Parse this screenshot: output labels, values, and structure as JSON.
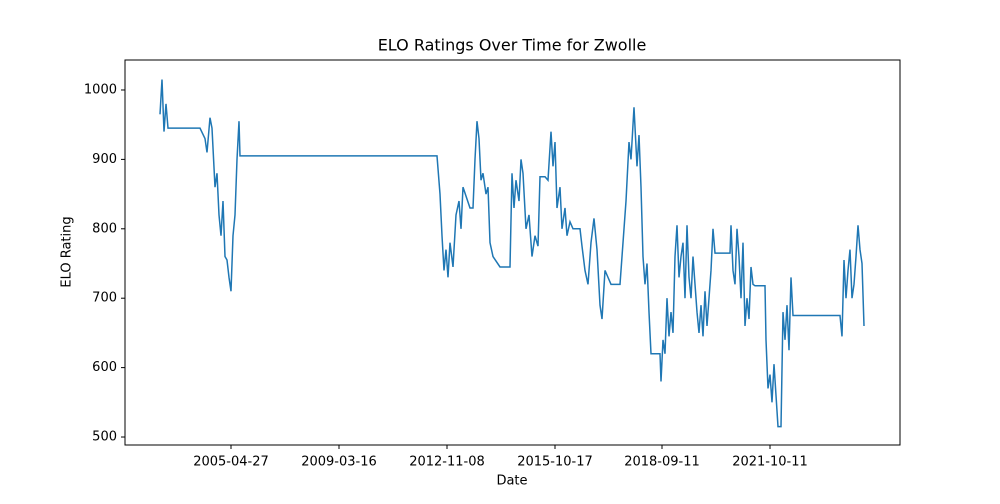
{
  "chart_data": {
    "type": "line",
    "title": "ELO Ratings Over Time for Zwolle",
    "x_label": "Date",
    "y_label": "ELO Rating",
    "color": "#1f77b4",
    "x": [
      0,
      2,
      4,
      6,
      8,
      40,
      45,
      47,
      50,
      52,
      55,
      57,
      59,
      61,
      63,
      65,
      67,
      69,
      71,
      73,
      75,
      77,
      79,
      80,
      277,
      280,
      282,
      284,
      286,
      288,
      290,
      293,
      296,
      299,
      301,
      303,
      310,
      313,
      315,
      317,
      319,
      321,
      323,
      326,
      328,
      330,
      333,
      340,
      350,
      352,
      354,
      356,
      359,
      361,
      363,
      366,
      369,
      372,
      375,
      378,
      380,
      385,
      388,
      391,
      393,
      395,
      397,
      400,
      402,
      405,
      407,
      410,
      413,
      420,
      422,
      425,
      428,
      431,
      434,
      437,
      440,
      442,
      445,
      448,
      451,
      460,
      463,
      466,
      469,
      471,
      474,
      477,
      479,
      481,
      483,
      485,
      487,
      489,
      491,
      495,
      500,
      501,
      503,
      505,
      507,
      509,
      511,
      513,
      515,
      517,
      519,
      521,
      523,
      525,
      527,
      529,
      531,
      533,
      535,
      537,
      539,
      541,
      543,
      545,
      547,
      549,
      551,
      553,
      555,
      565,
      570,
      571,
      573,
      575,
      577,
      579,
      581,
      583,
      585,
      587,
      589,
      591,
      593,
      595,
      605,
      606,
      608,
      610,
      612,
      614,
      616,
      618,
      621,
      623,
      625,
      627,
      629,
      631,
      633,
      640,
      680,
      682,
      684,
      686,
      688,
      690,
      692,
      694,
      696,
      698,
      700,
      702,
      704
    ],
    "series": [
      {
        "name": "Zwolle",
        "values": [
          965,
          1015,
          940,
          980,
          945,
          945,
          930,
          910,
          960,
          945,
          860,
          880,
          820,
          790,
          840,
          760,
          755,
          730,
          710,
          790,
          820,
          900,
          955,
          905,
          905,
          850,
          790,
          740,
          770,
          730,
          780,
          745,
          820,
          840,
          800,
          860,
          830,
          830,
          900,
          955,
          930,
          870,
          880,
          850,
          860,
          780,
          760,
          745,
          745,
          880,
          830,
          870,
          840,
          900,
          880,
          800,
          820,
          760,
          790,
          775,
          875,
          875,
          870,
          940,
          890,
          925,
          830,
          860,
          800,
          830,
          790,
          810,
          800,
          800,
          775,
          740,
          720,
          780,
          815,
          770,
          690,
          670,
          740,
          730,
          720,
          720,
          780,
          840,
          925,
          900,
          975,
          890,
          935,
          860,
          760,
          720,
          750,
          680,
          620,
          620,
          620,
          580,
          640,
          620,
          700,
          645,
          680,
          650,
          760,
          805,
          730,
          760,
          780,
          700,
          805,
          730,
          700,
          760,
          720,
          680,
          650,
          690,
          645,
          710,
          660,
          700,
          740,
          800,
          765,
          765,
          765,
          805,
          740,
          720,
          800,
          760,
          700,
          780,
          660,
          700,
          670,
          745,
          720,
          718,
          718,
          640,
          570,
          590,
          550,
          605,
          560,
          515,
          515,
          680,
          640,
          690,
          625,
          730,
          675,
          675,
          675,
          645,
          755,
          700,
          740,
          770,
          700,
          720,
          760,
          805,
          770,
          750,
          660
        ]
      }
    ],
    "xlim": [
      -35,
      740
    ],
    "xticks": [
      {
        "value": 71,
        "label": "2005-04-27"
      },
      {
        "value": 179,
        "label": "2009-03-16"
      },
      {
        "value": 287,
        "label": "2012-11-08"
      },
      {
        "value": 395,
        "label": "2015-10-17"
      },
      {
        "value": 502,
        "label": "2018-09-11"
      },
      {
        "value": 610,
        "label": "2021-10-11"
      }
    ],
    "ylim": [
      488.5,
      1043.2
    ],
    "yticks": [
      500,
      600,
      700,
      800,
      900,
      1000
    ]
  }
}
